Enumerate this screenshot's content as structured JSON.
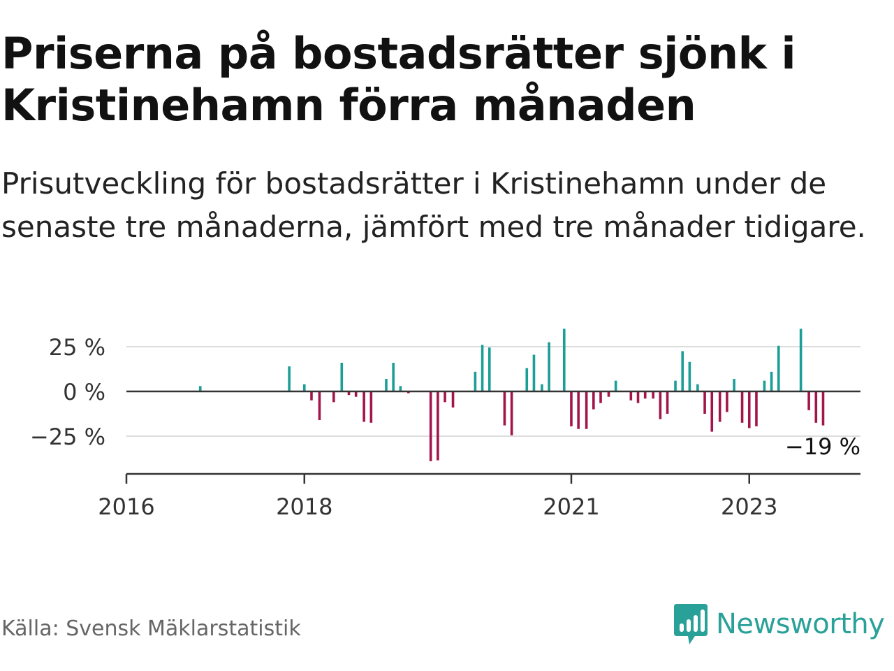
{
  "title": "Priserna på bostadsrätter sjönk i Kristinehamn förra månaden",
  "subtitle": "Prisutveckling för bostadsrätter i Kristinehamn under de senaste tre månaderna, jämfört med tre månader tidigare.",
  "source": "Källa: Svensk Mäklarstatistik",
  "logo": {
    "text": "Newsworthy",
    "icon": "bar-chart-speech-bubble-icon"
  },
  "colors": {
    "positive": "#1a9e96",
    "negative": "#a3154a",
    "grid": "#dddddd",
    "axis": "#333333",
    "brand": "#2aa198"
  },
  "chart_data": {
    "type": "bar",
    "x_unit": "decimal year (monthly bars)",
    "yticks": [
      {
        "value": 25,
        "label": "25 %"
      },
      {
        "value": 0,
        "label": "0 %"
      },
      {
        "value": -25,
        "label": "−25 %"
      }
    ],
    "xticks": [
      {
        "value": 2016.0,
        "label": "2016"
      },
      {
        "value": 2018.0,
        "label": "2018"
      },
      {
        "value": 2021.0,
        "label": "2021"
      },
      {
        "value": 2023.0,
        "label": "2023"
      }
    ],
    "xlim": [
      2016.0,
      2024.25
    ],
    "ylim": [
      -45,
      35
    ],
    "grid": true,
    "last_label": "−19 %",
    "points": [
      {
        "x": 2016.83,
        "y": 3
      },
      {
        "x": 2017.83,
        "y": 14
      },
      {
        "x": 2018.0,
        "y": 4
      },
      {
        "x": 2018.08,
        "y": -5
      },
      {
        "x": 2018.17,
        "y": -16
      },
      {
        "x": 2018.33,
        "y": -6
      },
      {
        "x": 2018.42,
        "y": 16
      },
      {
        "x": 2018.5,
        "y": -2
      },
      {
        "x": 2018.58,
        "y": -3
      },
      {
        "x": 2018.67,
        "y": -17
      },
      {
        "x": 2018.75,
        "y": -17.5
      },
      {
        "x": 2018.92,
        "y": 7
      },
      {
        "x": 2019.0,
        "y": 16
      },
      {
        "x": 2019.08,
        "y": 3
      },
      {
        "x": 2019.17,
        "y": -1
      },
      {
        "x": 2019.42,
        "y": -39
      },
      {
        "x": 2019.5,
        "y": -38.5
      },
      {
        "x": 2019.58,
        "y": -6
      },
      {
        "x": 2019.67,
        "y": -9
      },
      {
        "x": 2019.92,
        "y": 11
      },
      {
        "x": 2020.0,
        "y": 26
      },
      {
        "x": 2020.08,
        "y": 24.5
      },
      {
        "x": 2020.25,
        "y": -19
      },
      {
        "x": 2020.33,
        "y": -24.5
      },
      {
        "x": 2020.5,
        "y": 13
      },
      {
        "x": 2020.58,
        "y": 20.5
      },
      {
        "x": 2020.67,
        "y": 4
      },
      {
        "x": 2020.75,
        "y": 27.5
      },
      {
        "x": 2020.92,
        "y": 35
      },
      {
        "x": 2021.0,
        "y": -19.5
      },
      {
        "x": 2021.08,
        "y": -21
      },
      {
        "x": 2021.17,
        "y": -21
      },
      {
        "x": 2021.25,
        "y": -10
      },
      {
        "x": 2021.33,
        "y": -6.5
      },
      {
        "x": 2021.42,
        "y": -3
      },
      {
        "x": 2021.5,
        "y": 6
      },
      {
        "x": 2021.67,
        "y": -5
      },
      {
        "x": 2021.75,
        "y": -6.5
      },
      {
        "x": 2021.83,
        "y": -4
      },
      {
        "x": 2021.92,
        "y": -4
      },
      {
        "x": 2022.0,
        "y": -15.5
      },
      {
        "x": 2022.08,
        "y": -12.5
      },
      {
        "x": 2022.17,
        "y": 6
      },
      {
        "x": 2022.25,
        "y": 22.5
      },
      {
        "x": 2022.33,
        "y": 16.5
      },
      {
        "x": 2022.42,
        "y": 4
      },
      {
        "x": 2022.5,
        "y": -12.5
      },
      {
        "x": 2022.58,
        "y": -22.5
      },
      {
        "x": 2022.67,
        "y": -17
      },
      {
        "x": 2022.75,
        "y": -11.5
      },
      {
        "x": 2022.83,
        "y": 7
      },
      {
        "x": 2022.92,
        "y": -17.5
      },
      {
        "x": 2023.0,
        "y": -20.5
      },
      {
        "x": 2023.08,
        "y": -19.5
      },
      {
        "x": 2023.17,
        "y": 6
      },
      {
        "x": 2023.25,
        "y": 11
      },
      {
        "x": 2023.33,
        "y": 25.5
      },
      {
        "x": 2023.58,
        "y": 35
      },
      {
        "x": 2023.67,
        "y": -10.5
      },
      {
        "x": 2023.75,
        "y": -17.5
      },
      {
        "x": 2023.83,
        "y": -19
      }
    ]
  }
}
